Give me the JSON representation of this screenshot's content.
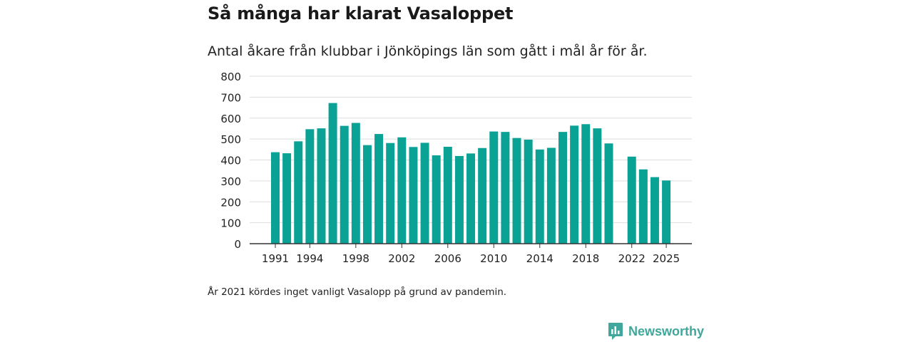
{
  "header": {
    "title": "Så många har klarat Vasaloppet",
    "subtitle": "Antal åkare från klubbar i Jönköpings län som gått i mål år för år."
  },
  "footer": {
    "note": "År 2021 kördes inget vanligt Vasalopp på grund av pandemin.",
    "brand": "Newsworthy",
    "brand_icon": "newsworthy-logo-icon"
  },
  "colors": {
    "bar": "#0ba296",
    "grid": "#dddddd",
    "axis": "#333333",
    "brand": "#3fa79b"
  },
  "chart_data": {
    "type": "bar",
    "title": "Så många har klarat Vasaloppet",
    "xlabel": "",
    "ylabel": "",
    "ylim": [
      0,
      800
    ],
    "yticks": [
      0,
      100,
      200,
      300,
      400,
      500,
      600,
      700,
      800
    ],
    "xtick_labels": [
      "1991",
      "1994",
      "1998",
      "2002",
      "2006",
      "2010",
      "2014",
      "2018",
      "2022",
      "2025"
    ],
    "categories": [
      1991,
      1992,
      1993,
      1994,
      1995,
      1996,
      1997,
      1998,
      1999,
      2000,
      2001,
      2002,
      2003,
      2004,
      2005,
      2006,
      2007,
      2008,
      2009,
      2010,
      2011,
      2012,
      2013,
      2014,
      2015,
      2016,
      2017,
      2018,
      2019,
      2020,
      2021,
      2022,
      2023,
      2024,
      2025
    ],
    "values": [
      437,
      432,
      489,
      547,
      551,
      672,
      563,
      577,
      471,
      524,
      481,
      508,
      462,
      482,
      422,
      463,
      419,
      431,
      457,
      536,
      534,
      505,
      497,
      450,
      458,
      534,
      564,
      571,
      551,
      479,
      null,
      416,
      355,
      318,
      302
    ],
    "grid": true,
    "legend": "none"
  }
}
